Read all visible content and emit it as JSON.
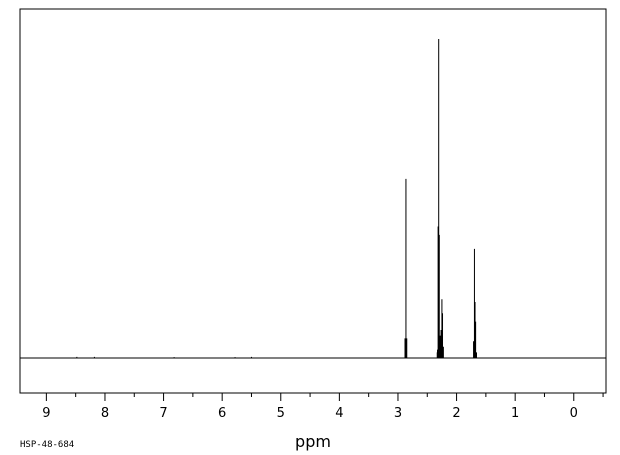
{
  "chart_data": {
    "type": "line",
    "title": "",
    "xlabel": "ppm",
    "ylabel": "",
    "x_reversed": true,
    "xlim": [
      9.45,
      -0.55
    ],
    "ylim": [
      -0.12,
      1.24
    ],
    "grid": false,
    "x_ticks": [
      9,
      8,
      7,
      6,
      5,
      4,
      3,
      2,
      1,
      0
    ],
    "x_tick_labels": [
      "9",
      "8",
      "7",
      "6",
      "5",
      "4",
      "3",
      "2",
      "1",
      "0"
    ],
    "series": [
      {
        "peaks": [
          {
            "x": 8.48,
            "y": 0.004
          },
          {
            "x": 8.18,
            "y": 0.004
          },
          {
            "x": 6.82,
            "y": 0.003
          },
          {
            "x": 5.78,
            "y": 0.003
          },
          {
            "x": 5.5,
            "y": 0.004
          },
          {
            "x": 2.88,
            "y": 0.07
          },
          {
            "x": 2.864,
            "y": 0.64
          },
          {
            "x": 2.85,
            "y": 0.07
          },
          {
            "x": 2.33,
            "y": 0.02
          },
          {
            "x": 2.325,
            "y": 0.03
          },
          {
            "x": 2.315,
            "y": 0.47
          },
          {
            "x": 2.305,
            "y": 1.14
          },
          {
            "x": 2.295,
            "y": 0.44
          },
          {
            "x": 2.28,
            "y": 0.08
          },
          {
            "x": 2.265,
            "y": 0.1
          },
          {
            "x": 2.25,
            "y": 0.21
          },
          {
            "x": 2.24,
            "y": 0.16
          },
          {
            "x": 2.225,
            "y": 0.04
          },
          {
            "x": 1.71,
            "y": 0.06
          },
          {
            "x": 1.695,
            "y": 0.39
          },
          {
            "x": 1.685,
            "y": 0.2
          },
          {
            "x": 1.675,
            "y": 0.13
          },
          {
            "x": 1.66,
            "y": 0.02
          }
        ]
      }
    ]
  },
  "footer": {
    "code": "HSP-48-684"
  }
}
